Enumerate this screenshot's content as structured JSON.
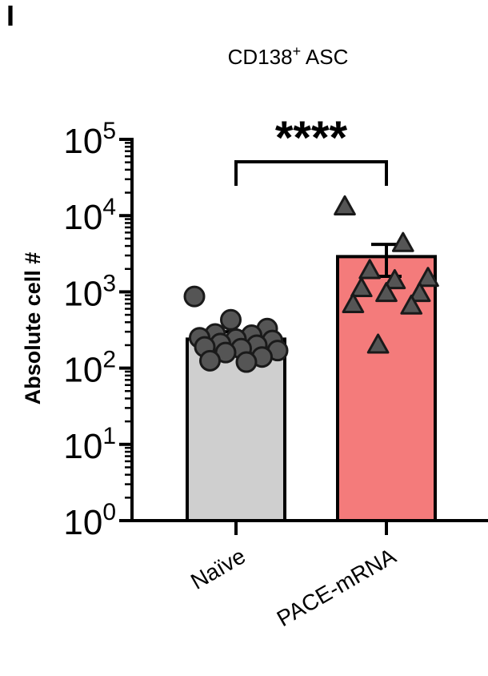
{
  "panel_label": "I",
  "chart_data": {
    "type": "bar",
    "title": "CD138",
    "title_superscript": "+",
    "title_suffix": " ASC",
    "xlabel": "",
    "ylabel": "Absolute cell #",
    "yscale": "log",
    "ylim": [
      1,
      100000
    ],
    "y_ticks": [
      {
        "value": 1,
        "base": "10",
        "exp": "0"
      },
      {
        "value": 10,
        "base": "10",
        "exp": "1"
      },
      {
        "value": 100,
        "base": "10",
        "exp": "2"
      },
      {
        "value": 1000,
        "base": "10",
        "exp": "3"
      },
      {
        "value": 10000,
        "base": "10",
        "exp": "4"
      },
      {
        "value": 100000,
        "base": "10",
        "exp": "5"
      }
    ],
    "categories": [
      "Naïve",
      "PACE-mRNA"
    ],
    "series": [
      {
        "values": [
          240,
          2900
        ],
        "sem": [
          60,
          1300
        ],
        "colors": [
          "#cfcfcf",
          "#f47b7b"
        ],
        "markers": [
          "circle",
          "triangle"
        ],
        "points": [
          [
            870,
            430,
            330,
            280,
            270,
            250,
            240,
            230,
            210,
            200,
            190,
            180,
            170,
            160,
            140,
            125,
            120
          ],
          [
            13000,
            4300,
            1900,
            1500,
            1400,
            1100,
            950,
            950,
            680,
            650,
            200
          ]
        ]
      }
    ],
    "significance": {
      "label": "****",
      "between": [
        0,
        1
      ]
    }
  }
}
